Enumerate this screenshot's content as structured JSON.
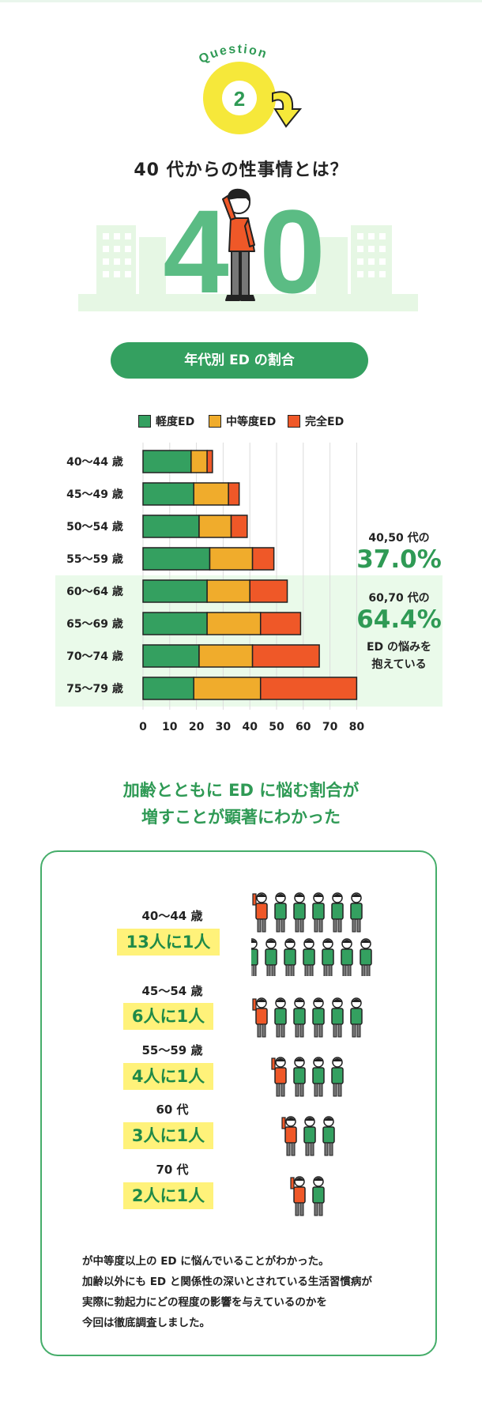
{
  "question": {
    "word": "Question",
    "number": "2"
  },
  "hero": {
    "title": "40 代からの性事情とは？",
    "big_number_left": "4",
    "big_number_right": "0"
  },
  "colors": {
    "mild": "#34a060",
    "moderate": "#f0ac2c",
    "complete": "#ef5828",
    "accent_green": "#2f9a55",
    "highlight_bg": "#eafaea",
    "ratio_bg": "#fff27a"
  },
  "chart_data": {
    "type": "bar",
    "orientation": "horizontal",
    "stacked": true,
    "title": "年代別 ED の割合",
    "categories": [
      "40〜44 歳",
      "45〜49 歳",
      "50〜54 歳",
      "55〜59 歳",
      "60〜64 歳",
      "65〜69 歳",
      "70〜74 歳",
      "75〜79 歳"
    ],
    "series": [
      {
        "name": "軽度ED",
        "values": [
          18,
          19,
          21,
          25,
          24,
          24,
          21,
          19
        ]
      },
      {
        "name": "中等度ED",
        "values": [
          6,
          13,
          12,
          16,
          16,
          20,
          20,
          25
        ]
      },
      {
        "name": "完全ED",
        "values": [
          2,
          4,
          6,
          8,
          14,
          15,
          25,
          36
        ]
      }
    ],
    "xlim": [
      0,
      80
    ],
    "xticks": [
      "0",
      "10",
      "20",
      "30",
      "40",
      "50",
      "60",
      "70",
      "80"
    ],
    "grid": true,
    "legend": "top",
    "annotations": [
      {
        "label": "40,50 代の",
        "value": "37.0%"
      },
      {
        "label": "60,70 代の",
        "value": "64.4%",
        "note_line1": "ED の悩みを",
        "note_line2": "抱えている"
      }
    ]
  },
  "headline": {
    "line1": "加齢とともに ED に悩む割合が",
    "line2": "増すことが顕著にわかった"
  },
  "ratios": [
    {
      "age": "40〜44 歳",
      "ratio": "13人に1人",
      "count": 13
    },
    {
      "age": "45〜54 歳",
      "ratio": "6人に1人",
      "count": 6
    },
    {
      "age": "55〜59 歳",
      "ratio": "4人に1人",
      "count": 4
    },
    {
      "age": "60 代",
      "ratio": "3人に1人",
      "count": 3
    },
    {
      "age": "70 代",
      "ratio": "2人に1人",
      "count": 2
    }
  ],
  "footer": {
    "line1": "が中等度以上の ED に悩んでいることがわかった。",
    "line2": "加齢以外にも ED と関係性の深いとされている生活習慣病が",
    "line3": "実際に勃起力にどの程度の影響を与えているのかを",
    "line4": "今回は徹底調査しました。"
  }
}
